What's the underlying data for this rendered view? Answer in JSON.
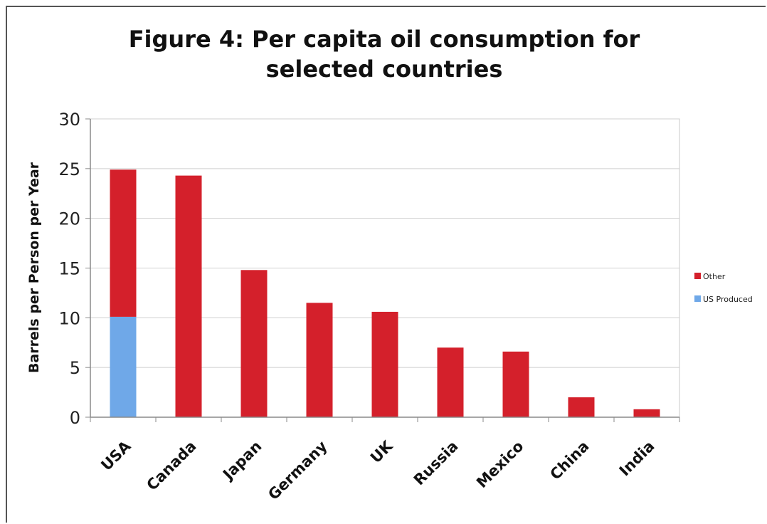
{
  "chart_data": {
    "type": "bar",
    "stacked": true,
    "title": [
      "Figure 4: Per capita oil consumption for",
      "selected countries"
    ],
    "ylabel": "Barrels per Person per Year",
    "xlabel": "",
    "ylim": [
      0,
      30
    ],
    "yticks": [
      0,
      5,
      10,
      15,
      20,
      25,
      30
    ],
    "grid": true,
    "legend_position": "right",
    "categories": [
      "USA",
      "Canada",
      "Japan",
      "Germany",
      "UK",
      "Russia",
      "Mexico",
      "China",
      "India"
    ],
    "series": [
      {
        "name": "US Produced",
        "color": "#6fa8e8",
        "values": [
          10.1,
          0,
          0,
          0,
          0,
          0,
          0,
          0,
          0
        ]
      },
      {
        "name": "Other",
        "color": "#d4202b",
        "values": [
          14.8,
          24.3,
          14.8,
          11.5,
          10.6,
          7.0,
          6.6,
          2.0,
          0.8
        ]
      }
    ],
    "legend_order": [
      "Other",
      "US Produced"
    ]
  }
}
